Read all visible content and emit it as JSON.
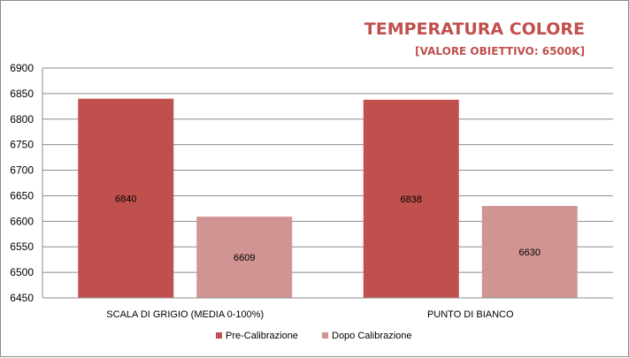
{
  "chart_data": {
    "type": "bar",
    "title": "TEMPERATURA COLORE",
    "subtitle": "[VALORE OBIETTIVO: 6500K]",
    "categories": [
      "SCALA DI GRIGIO  (MEDIA  0-100%)",
      "PUNTO DI BIANCO"
    ],
    "series": [
      {
        "name": "Pre-Calibrazione",
        "values": [
          6840,
          6838
        ],
        "color": "#c0504d"
      },
      {
        "name": "Dopo Calibrazione",
        "values": [
          6609,
          6630
        ],
        "color": "#d09593"
      }
    ],
    "ylim": [
      6450,
      6900
    ],
    "yticks": [
      6450,
      6500,
      6550,
      6600,
      6650,
      6700,
      6750,
      6800,
      6850,
      6900
    ],
    "grid": true,
    "legend": "bottom"
  }
}
